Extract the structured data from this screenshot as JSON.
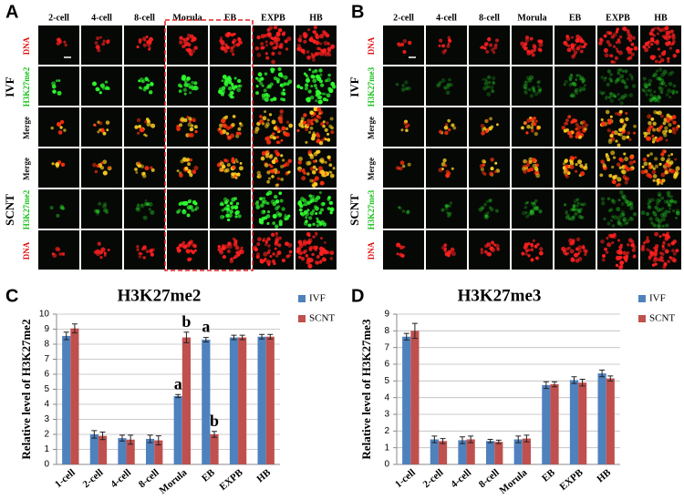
{
  "panels": [
    {
      "label": "A",
      "columns": [
        "2-cell",
        "4-cell",
        "8-cell",
        "Morula",
        "EB",
        "EXPB",
        "HB"
      ],
      "groups": [
        "IVF",
        "SCNT"
      ],
      "rows": [
        "DNA",
        "H3K27me2",
        "Merge",
        "Merge",
        "H3K27me2",
        "DNA"
      ]
    },
    {
      "label": "B",
      "columns": [
        "2-cell",
        "4-cell",
        "8-cell",
        "Morula",
        "EB",
        "EXPB",
        "HB"
      ],
      "groups": [
        "IVF",
        "SCNT"
      ],
      "rows": [
        "DNA",
        "H3K27me3",
        "Merge",
        "Merge",
        "H3K27me3",
        "DNA"
      ]
    }
  ],
  "chart_data": [
    {
      "type": "bar",
      "panel": "C",
      "title": "H3K27me2",
      "y_label": "Relative level of H3K27me2",
      "categories": [
        "1-cell",
        "2-cell",
        "4-cell",
        "8-cell",
        "Morula",
        "EB",
        "EXPB",
        "HB"
      ],
      "series": [
        {
          "name": "IVF",
          "color": "#4f81bd",
          "values": [
            8.55,
            2.0,
            1.75,
            1.7,
            4.55,
            8.3,
            8.45,
            8.5
          ],
          "errors": [
            0.25,
            0.25,
            0.2,
            0.25,
            0.1,
            0.15,
            0.15,
            0.15
          ]
        },
        {
          "name": "SCNT",
          "color": "#c0504d",
          "values": [
            9.05,
            1.9,
            1.65,
            1.6,
            8.45,
            2.0,
            8.45,
            8.5
          ],
          "errors": [
            0.3,
            0.25,
            0.3,
            0.3,
            0.35,
            0.2,
            0.15,
            0.15
          ]
        }
      ],
      "annotations": [
        {
          "text": "a",
          "category": "Morula",
          "series": "IVF"
        },
        {
          "text": "b",
          "category": "Morula",
          "series": "SCNT"
        },
        {
          "text": "a",
          "category": "EB",
          "series": "IVF"
        },
        {
          "text": "b",
          "category": "EB",
          "series": "SCNT"
        }
      ],
      "ylim": [
        0,
        10
      ],
      "yticks": [
        0,
        1,
        2,
        3,
        4,
        5,
        6,
        7,
        8,
        9,
        10
      ],
      "grid": true
    },
    {
      "type": "bar",
      "panel": "D",
      "title": "H3K27me3",
      "y_label": "Relative level of H3K27me3",
      "categories": [
        "1-cell",
        "2-cell",
        "4-cell",
        "8-cell",
        "Morula",
        "EB",
        "EXPB",
        "HB"
      ],
      "series": [
        {
          "name": "IVF",
          "color": "#4f81bd",
          "values": [
            7.65,
            1.5,
            1.45,
            1.4,
            1.5,
            4.75,
            5.05,
            5.45
          ],
          "errors": [
            0.2,
            0.2,
            0.2,
            0.1,
            0.2,
            0.2,
            0.2,
            0.2
          ]
        },
        {
          "name": "SCNT",
          "color": "#c0504d",
          "values": [
            8.0,
            1.4,
            1.5,
            1.35,
            1.55,
            4.8,
            4.9,
            5.15
          ],
          "errors": [
            0.45,
            0.15,
            0.2,
            0.1,
            0.2,
            0.15,
            0.2,
            0.15
          ]
        }
      ],
      "annotations": [],
      "ylim": [
        0,
        9
      ],
      "yticks": [
        0,
        1,
        2,
        3,
        4,
        5,
        6,
        7,
        8,
        9
      ],
      "grid": true
    }
  ]
}
